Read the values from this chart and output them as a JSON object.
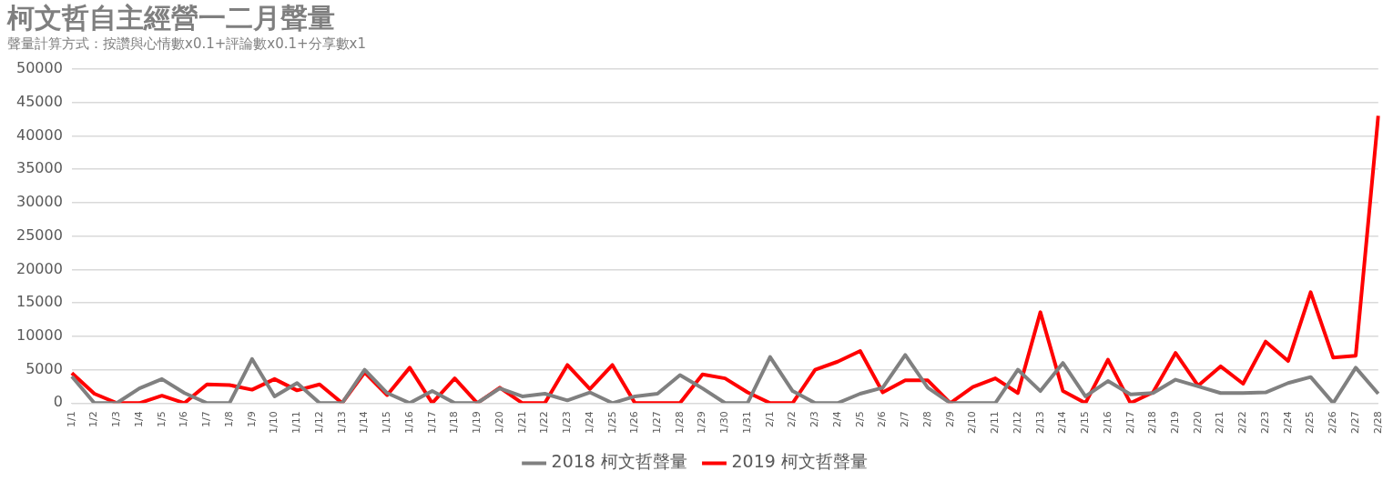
{
  "chart_data": {
    "type": "line",
    "title": "柯文哲自主經營一二月聲量",
    "subtitle": "聲量計算方式：按讚與心情數x0.1+評論數x0.1+分享數x1",
    "categories": [
      "1/1",
      "1/2",
      "1/3",
      "1/4",
      "1/5",
      "1/6",
      "1/7",
      "1/8",
      "1/9",
      "1/10",
      "1/11",
      "1/12",
      "1/13",
      "1/14",
      "1/15",
      "1/16",
      "1/17",
      "1/18",
      "1/19",
      "1/20",
      "1/21",
      "1/22",
      "1/23",
      "1/24",
      "1/25",
      "1/26",
      "1/27",
      "1/28",
      "1/29",
      "1/30",
      "1/31",
      "2/1",
      "2/2",
      "2/3",
      "2/4",
      "2/5",
      "2/6",
      "2/7",
      "2/8",
      "2/9",
      "2/10",
      "2/11",
      "2/12",
      "2/13",
      "2/14",
      "2/15",
      "2/16",
      "2/17",
      "2/18",
      "2/19",
      "2/20",
      "2/21",
      "2/22",
      "2/23",
      "2/24",
      "2/25",
      "2/26",
      "2/27",
      "2/28"
    ],
    "series": [
      {
        "name": "2018 柯文哲聲量",
        "color": "#808080",
        "values": [
          4000,
          0,
          0,
          2200,
          3600,
          1500,
          0,
          0,
          6600,
          1000,
          3000,
          0,
          0,
          5000,
          1500,
          0,
          1800,
          0,
          0,
          2200,
          1000,
          1400,
          400,
          1600,
          0,
          1000,
          1400,
          4200,
          2200,
          0,
          0,
          6900,
          1800,
          0,
          0,
          1400,
          2300,
          7200,
          2300,
          0,
          0,
          0,
          5000,
          1800,
          6000,
          1000,
          3300,
          1300,
          1500,
          3500,
          2500,
          1500,
          1500,
          1600,
          3000,
          3900,
          0,
          5300,
          1400
        ]
      },
      {
        "name": "2019 柯文哲聲量",
        "color": "#ff0000",
        "values": [
          4500,
          1400,
          0,
          0,
          1100,
          0,
          2800,
          2700,
          2000,
          3600,
          1900,
          2800,
          0,
          4600,
          1200,
          5300,
          0,
          3700,
          0,
          2300,
          0,
          0,
          5700,
          2100,
          5700,
          0,
          0,
          0,
          4300,
          3700,
          1600,
          0,
          0,
          5000,
          6200,
          7800,
          1600,
          3400,
          3400,
          0,
          2400,
          3700,
          1500,
          13600,
          1800,
          0,
          6500,
          0,
          1600,
          7500,
          2600,
          5500,
          2900,
          9200,
          6300,
          16600,
          6800,
          7100,
          43000
        ]
      }
    ],
    "ylim": [
      0,
      50000
    ],
    "yticks": [
      0,
      5000,
      10000,
      15000,
      20000,
      25000,
      30000,
      35000,
      40000,
      45000,
      50000
    ],
    "grid": "y",
    "legend": "bottom",
    "marker": "none",
    "line_style": "solid"
  }
}
